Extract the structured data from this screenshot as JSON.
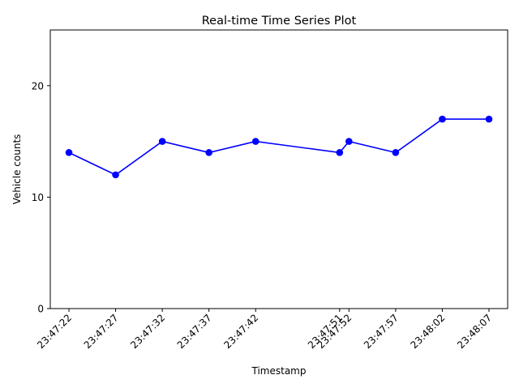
{
  "chart_data": {
    "type": "line",
    "title": "Real-time Time Series Plot",
    "xlabel": "Timestamp",
    "ylabel": "Vehicle counts",
    "ylim": [
      0,
      25
    ],
    "yticks": [
      0,
      10,
      20
    ],
    "xlim": [
      "23:47:20",
      "23:48:09"
    ],
    "xticks": [
      "23:47:22",
      "23:47:27",
      "23:47:32",
      "23:47:37",
      "23:47:42",
      "23:47:51",
      "23:47:52",
      "23:47:57",
      "23:48:02",
      "23:48:07"
    ],
    "grid": false,
    "line_color": "#0000ff",
    "series": [
      {
        "x": [
          "23:47:22",
          "23:47:27",
          "23:47:32",
          "23:47:37",
          "23:47:42",
          "23:47:51",
          "23:47:52",
          "23:47:57",
          "23:48:02",
          "23:48:07"
        ],
        "values": [
          14,
          12,
          15,
          14,
          15,
          14,
          15,
          14,
          17,
          17
        ]
      }
    ]
  }
}
